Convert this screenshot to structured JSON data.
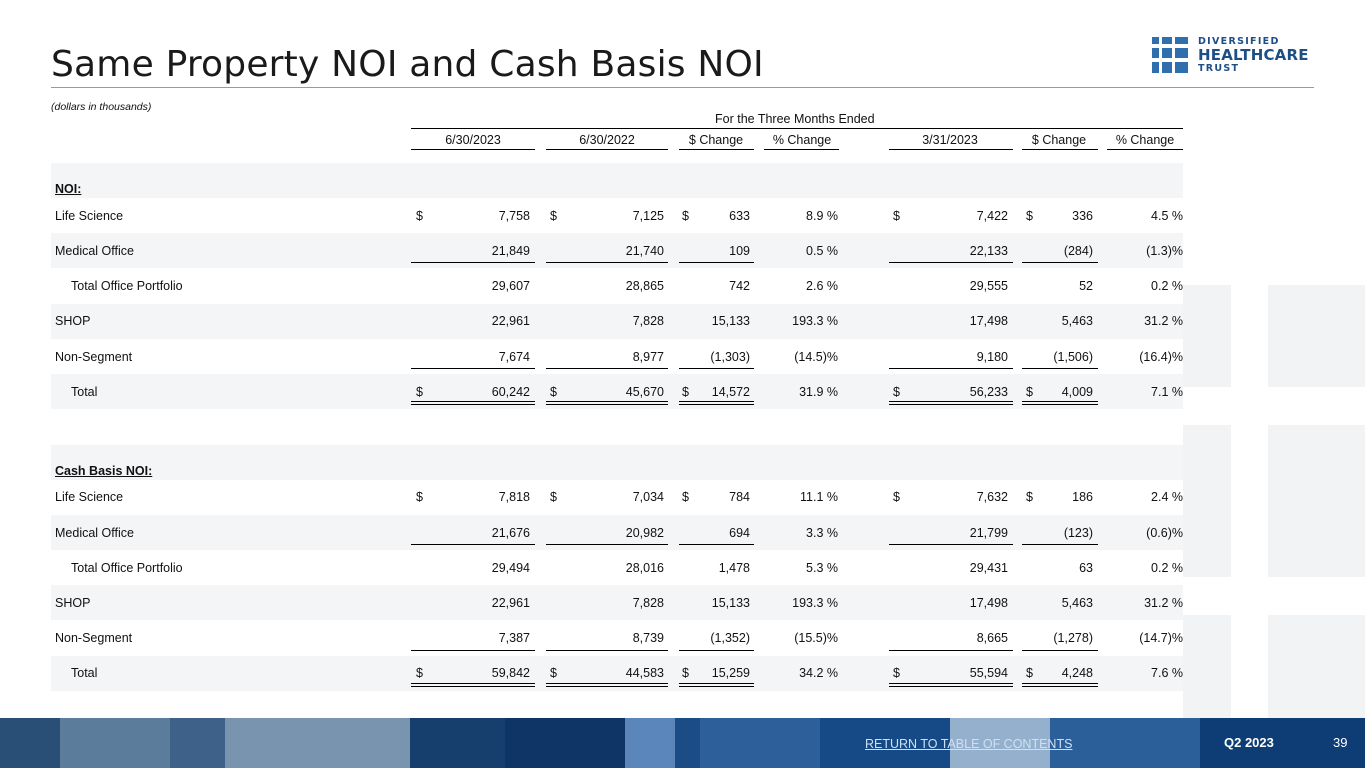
{
  "title": "Same Property NOI and Cash Basis NOI",
  "logo": {
    "line1": "DIVERSIFIED",
    "line2": "HEALTHCARE",
    "line3": "TRUST",
    "color": "#1e4e86"
  },
  "units_note": "(dollars in thousands)",
  "period_header": "For the Three Months Ended",
  "columns": [
    "6/30/2023",
    "6/30/2022",
    "$ Change",
    "% Change",
    "3/31/2023",
    "$ Change",
    "% Change"
  ],
  "sections": [
    {
      "heading": "NOI:",
      "rows": [
        {
          "label": "Life Science",
          "indent": false,
          "dollar": true,
          "values": [
            "7,758",
            "7,125",
            "633",
            "8.9 %",
            "7,422",
            "336",
            "4.5 %"
          ]
        },
        {
          "label": "Medical Office",
          "indent": false,
          "dollar": false,
          "values": [
            "21,849",
            "21,740",
            "109",
            "0.5 %",
            "22,133",
            "(284)",
            "(1.3)%"
          ]
        },
        {
          "label": "Total Office Portfolio",
          "indent": true,
          "dollar": false,
          "values": [
            "29,607",
            "28,865",
            "742",
            "2.6 %",
            "29,555",
            "52",
            "0.2 %"
          ]
        },
        {
          "label": "SHOP",
          "indent": false,
          "dollar": false,
          "values": [
            "22,961",
            "7,828",
            "15,133",
            "193.3 %",
            "17,498",
            "5,463",
            "31.2 %"
          ]
        },
        {
          "label": "Non-Segment",
          "indent": false,
          "dollar": false,
          "values": [
            "7,674",
            "8,977",
            "(1,303)",
            "(14.5)%",
            "9,180",
            "(1,506)",
            "(16.4)%"
          ]
        },
        {
          "label": "Total",
          "indent": true,
          "dollar": true,
          "values": [
            "60,242",
            "45,670",
            "14,572",
            "31.9 %",
            "56,233",
            "4,009",
            "7.1 %"
          ]
        }
      ]
    },
    {
      "heading": "Cash Basis NOI:",
      "rows": [
        {
          "label": "Life Science",
          "indent": false,
          "dollar": true,
          "values": [
            "7,818",
            "7,034",
            "784",
            "11.1 %",
            "7,632",
            "186",
            "2.4 %"
          ]
        },
        {
          "label": "Medical Office",
          "indent": false,
          "dollar": false,
          "values": [
            "21,676",
            "20,982",
            "694",
            "3.3 %",
            "21,799",
            "(123)",
            "(0.6)%"
          ]
        },
        {
          "label": "Total Office Portfolio",
          "indent": true,
          "dollar": false,
          "values": [
            "29,494",
            "28,016",
            "1,478",
            "5.3 %",
            "29,431",
            "63",
            "0.2 %"
          ]
        },
        {
          "label": "SHOP",
          "indent": false,
          "dollar": false,
          "values": [
            "22,961",
            "7,828",
            "15,133",
            "193.3 %",
            "17,498",
            "5,463",
            "31.2 %"
          ]
        },
        {
          "label": "Non-Segment",
          "indent": false,
          "dollar": false,
          "values": [
            "7,387",
            "8,739",
            "(1,352)",
            "(15.5)%",
            "8,665",
            "(1,278)",
            "(14.7)%"
          ]
        },
        {
          "label": "Total",
          "indent": true,
          "dollar": true,
          "values": [
            "59,842",
            "44,583",
            "15,259",
            "34.2 %",
            "55,594",
            "4,248",
            "7.6 %"
          ]
        }
      ]
    }
  ],
  "currency_symbol": "$",
  "footer": {
    "link_text": "RETURN TO TABLE OF CONTENTS",
    "quarter": "Q2 2023",
    "page_number": "39",
    "background_color": "#0b3a6e"
  }
}
